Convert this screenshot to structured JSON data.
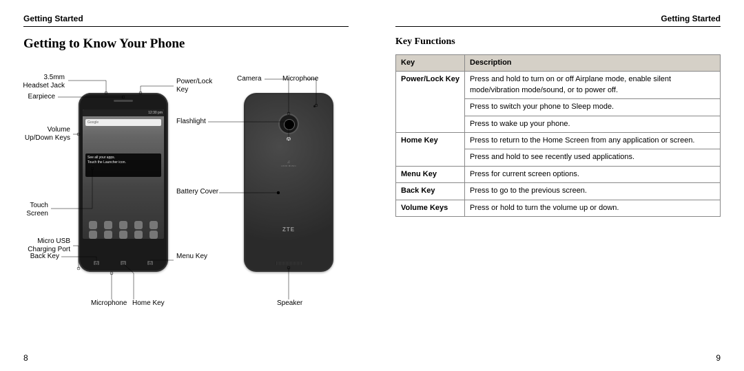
{
  "header_text": "Getting Started",
  "page_title": "Getting to Know Your Phone",
  "sub_title": "Key Functions",
  "page_num_left": "8",
  "page_num_right": "9",
  "labels": {
    "headset_jack": "3.5mm\nHeadset Jack",
    "earpiece": "Earpiece",
    "volume_keys": "Volume\nUp/Down Keys",
    "touch_screen": "Touch\nScreen",
    "micro_usb": "Micro USB\nCharging Port",
    "back_key": "Back Key",
    "microphone": "Microphone",
    "home_key": "Home Key",
    "menu_key": "Menu Key",
    "power_lock": "Power/Lock\nKey",
    "flashlight": "Flashlight",
    "battery_cover": "Battery Cover",
    "camera": "Camera",
    "microphone_back": "Microphone",
    "speaker": "Speaker"
  },
  "screen_ui": {
    "status_time": "12:30 pm",
    "search_placeholder": "Google",
    "widget_line1": "See all your apps.",
    "widget_line2": "Touch the Launcher icon."
  },
  "phone_back_logo": "ZTE",
  "phone_back_loud": "LOUD MUSIC",
  "keyfn_table": {
    "headers": [
      "Key",
      "Description"
    ],
    "rows": [
      {
        "key": "Power/Lock Key",
        "desc": [
          "Press and hold to turn on or off Airplane mode, enable silent mode/vibration mode/sound, or to power off.",
          "Press to switch your phone to Sleep mode.",
          "Press to wake up your phone."
        ]
      },
      {
        "key": "Home Key",
        "desc": [
          "Press to return to the Home Screen from any application or screen.",
          "Press and hold to see recently used applications."
        ]
      },
      {
        "key": "Menu Key",
        "desc": [
          "Press for current screen options."
        ]
      },
      {
        "key": "Back Key",
        "desc": [
          "Press to go to the previous screen."
        ]
      },
      {
        "key": "Volume Keys",
        "desc": [
          "Press or hold to turn the volume up or down."
        ]
      }
    ]
  }
}
